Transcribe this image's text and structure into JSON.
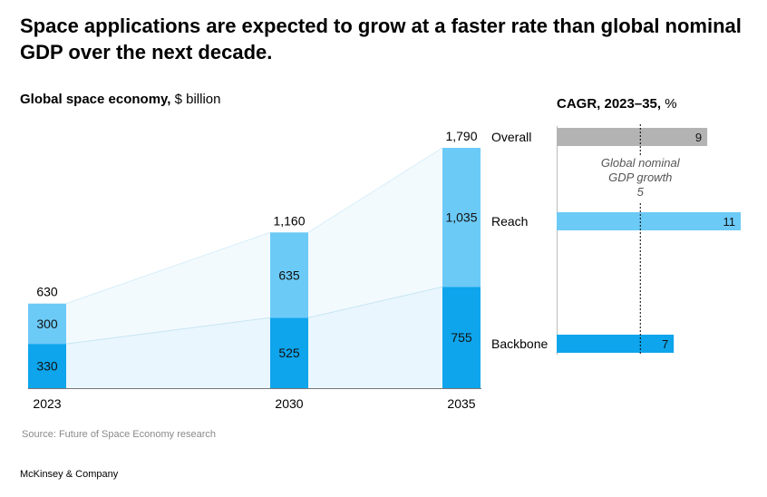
{
  "title": "Space applications are expected to grow at a faster rate than global nominal GDP over the next decade.",
  "left_subtitle": {
    "bold": "Global space economy,",
    "unit": "$ billion"
  },
  "right_subtitle": {
    "bold": "CAGR, 2023–35,",
    "unit": "%"
  },
  "source": "Source: Future of Space Economy research",
  "brand": "McKinsey & Company",
  "colors": {
    "backbone": "#0ea5ec",
    "reach": "#6ccaf7",
    "overall": "#b3b3b3",
    "shade_low": "#e9f6fd",
    "shade_high": "#f3fafe"
  },
  "chart_data": [
    {
      "type": "bar",
      "stacked": true,
      "categories": [
        "2023",
        "2030",
        "2035"
      ],
      "series": [
        {
          "name": "Backbone",
          "values": [
            330,
            525,
            755
          ]
        },
        {
          "name": "Reach",
          "values": [
            300,
            635,
            1035
          ]
        }
      ],
      "totals": [
        630,
        1160,
        1790
      ],
      "total_labels": [
        "630",
        "1,160",
        "1,790"
      ],
      "value_labels": {
        "Backbone": [
          "330",
          "525",
          "755"
        ],
        "Reach": [
          "300",
          "635",
          "1,035"
        ]
      },
      "ylim": [
        0,
        1790
      ]
    },
    {
      "type": "bar",
      "orientation": "horizontal",
      "categories": [
        "Overall",
        "Reach",
        "Backbone"
      ],
      "values": [
        9,
        11,
        7
      ],
      "xlim": [
        0,
        11
      ],
      "reference_line": {
        "label_lines": [
          "Global nominal",
          "GDP growth"
        ],
        "value": 5
      }
    }
  ]
}
